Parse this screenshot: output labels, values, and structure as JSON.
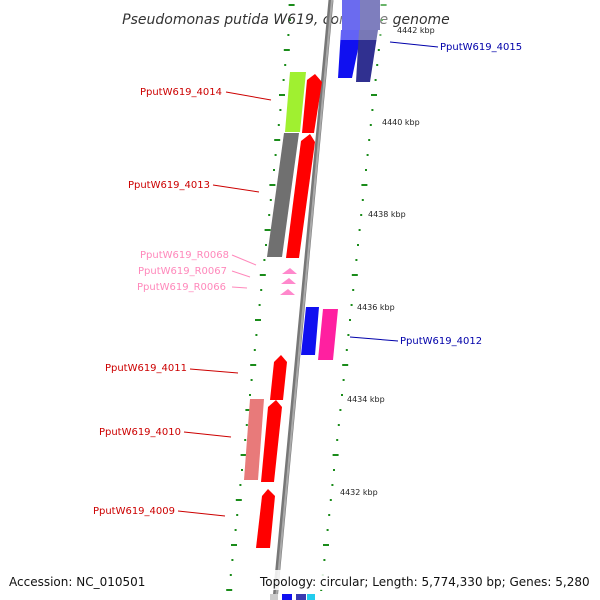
{
  "title": "Pseudomonas putida W619, complete genome",
  "accession": "Accession: NC_010501",
  "topology": "Topology: circular; Length: 5,774,330 bp; Genes: 5,280",
  "colors": {
    "red_gene": "#ff0000",
    "dark_red_gene": "#cc0000",
    "pink_gene": "#e87a7a",
    "grey_gene": "#707070",
    "lime_gene": "#a0f030",
    "blue_gene": "#1010f0",
    "navy_gene": "#303090",
    "magenta_gene": "#ff20a0",
    "rna_gene": "#ff88cc",
    "backbone": "#888888",
    "tick": "#1a8c1a",
    "label_red": "#cc0000",
    "label_pink": "#ff6699",
    "label_blue": "#0000aa"
  },
  "ticks": [
    {
      "label": "4442 kbp"
    },
    {
      "label": "4440 kbp"
    },
    {
      "label": "4438 kbp"
    },
    {
      "label": "4436 kbp"
    },
    {
      "label": "4434 kbp"
    },
    {
      "label": "4432 kbp"
    }
  ],
  "genes": [
    {
      "id": "PputW619_4015",
      "strand": "plus",
      "color": "navy"
    },
    {
      "id": "PputW619_4014",
      "strand": "minus",
      "color": "red"
    },
    {
      "id": "PputW619_4013",
      "strand": "minus",
      "color": "red"
    },
    {
      "id": "PputW619_R0068",
      "strand": "minus",
      "color": "rna"
    },
    {
      "id": "PputW619_R0067",
      "strand": "minus",
      "color": "rna"
    },
    {
      "id": "PputW619_R0066",
      "strand": "minus",
      "color": "rna"
    },
    {
      "id": "PputW619_4012",
      "strand": "plus",
      "color": "blue"
    },
    {
      "id": "PputW619_4011",
      "strand": "minus",
      "color": "red"
    },
    {
      "id": "PputW619_4010",
      "strand": "minus",
      "color": "red"
    },
    {
      "id": "PputW619_4009",
      "strand": "minus",
      "color": "red"
    }
  ]
}
